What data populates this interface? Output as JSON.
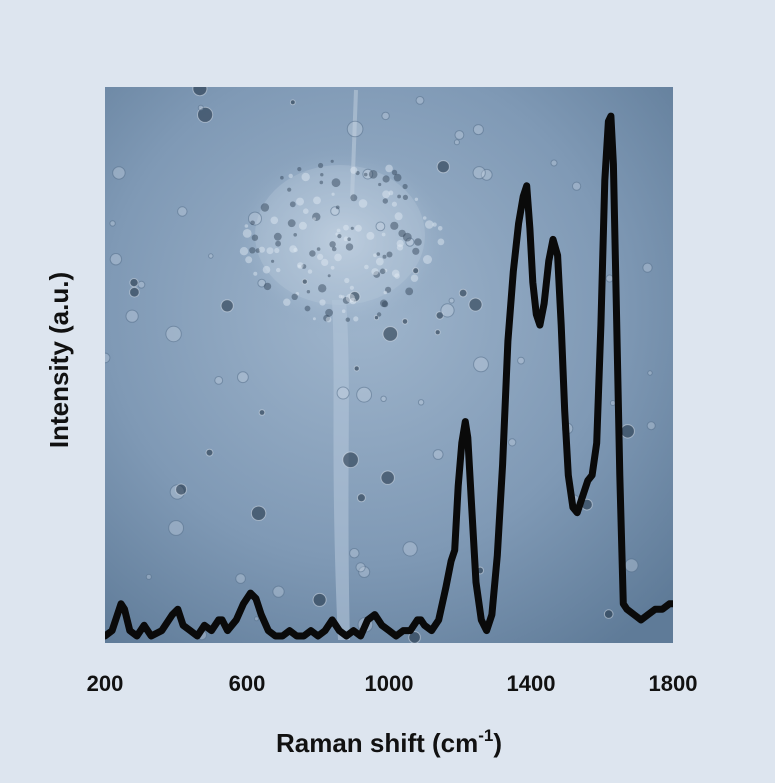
{
  "chart_data": {
    "type": "line",
    "title": "",
    "xlabel": "Raman shift (cm",
    "xlabel_sup": "-1",
    "xlabel_close": ")",
    "ylabel": "Intensity (a.u.)",
    "xlim": [
      200,
      1800
    ],
    "ylim": [
      0,
      100
    ],
    "x_ticks": [
      200,
      600,
      1000,
      1400,
      1800
    ],
    "grid": false,
    "legend": "none",
    "background": "microscope image of cells (phase contrast, blue tint)",
    "colors": {
      "line": "#0a0a0a",
      "plot_bg_light": "#a9bdd3",
      "plot_bg_dark": "#55728f",
      "page_bg": "#dde5ef"
    },
    "series": [
      {
        "values_x": [
          200,
          220,
          245,
          255,
          270,
          290,
          310,
          330,
          360,
          390,
          405,
          420,
          440,
          460,
          480,
          500,
          520,
          530,
          545,
          570,
          590,
          610,
          625,
          640,
          660,
          680,
          700,
          720,
          740,
          760,
          780,
          800,
          820,
          840,
          860,
          880,
          900,
          920,
          940,
          960,
          980,
          1000,
          1020,
          1040,
          1060,
          1080,
          1090,
          1100,
          1120,
          1140,
          1160,
          1175,
          1185,
          1195,
          1205,
          1215,
          1222,
          1232,
          1245,
          1260,
          1275,
          1290,
          1305,
          1320,
          1335,
          1350,
          1365,
          1378,
          1388,
          1397,
          1405,
          1415,
          1425,
          1437,
          1450,
          1462,
          1475,
          1485,
          1495,
          1505,
          1518,
          1530,
          1545,
          1560,
          1572,
          1585,
          1597,
          1608,
          1618,
          1625,
          1632,
          1640,
          1650,
          1660,
          1670,
          1690,
          1710,
          1730,
          1750,
          1770,
          1790,
          1800
        ],
        "values_y": [
          0,
          1,
          6,
          5,
          1,
          0,
          2,
          0,
          1,
          4,
          5,
          2,
          1,
          0,
          2,
          1,
          3,
          3,
          1,
          3,
          6,
          8,
          7,
          4,
          1,
          0,
          0,
          1,
          0,
          0,
          1,
          0,
          1,
          3,
          1,
          0,
          1,
          0,
          3,
          4,
          2,
          1,
          0,
          1,
          1,
          3,
          3,
          2,
          1,
          3,
          9,
          14,
          16,
          28,
          36,
          40,
          37,
          25,
          10,
          3,
          1,
          4,
          15,
          32,
          55,
          68,
          77,
          82,
          84,
          76,
          66,
          60,
          58,
          62,
          70,
          74,
          71,
          58,
          42,
          30,
          24,
          23,
          26,
          29,
          30,
          36,
          58,
          85,
          96,
          97,
          88,
          63,
          30,
          6,
          5,
          4,
          3,
          4,
          5,
          5,
          6,
          6
        ]
      }
    ]
  }
}
